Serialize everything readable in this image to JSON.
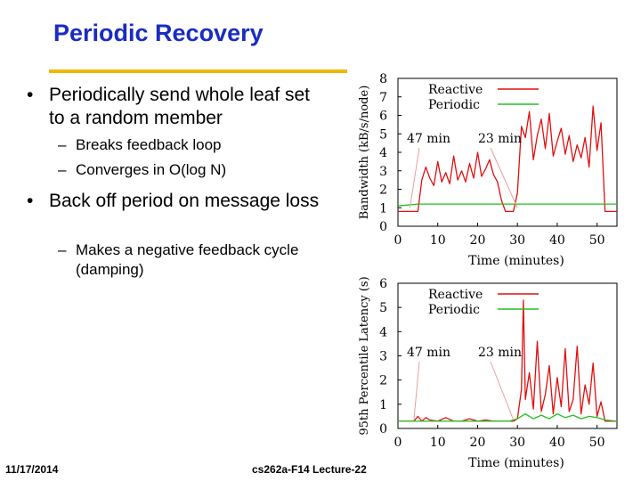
{
  "slide": {
    "title": "Periodic Recovery",
    "bullets": [
      {
        "text": "Periodically send whole leaf set to a random member",
        "subbullets": [
          "Breaks feedback loop",
          "Converges in O(log N)"
        ]
      },
      {
        "text": "Back off period on message loss",
        "subbullets": [
          "Makes a negative feedback cycle (damping)"
        ]
      }
    ],
    "footer": {
      "date": "11/17/2014",
      "course": "cs262a-F14 Lecture-22"
    },
    "bullet_mark": "•",
    "sub_mark": "–"
  },
  "colors": {
    "title": "#1a2cc2",
    "rule": "#f0b800",
    "reactive": "#e01010",
    "periodic": "#20c020"
  },
  "chart_data": [
    {
      "type": "line",
      "ylabel": "Bandwidth (kB/s/node)",
      "xlabel": "Time (minutes)",
      "xlim": [
        0,
        55
      ],
      "ylim": [
        0,
        8
      ],
      "xticks": [
        "0",
        "10",
        "20",
        "30",
        "40",
        "50"
      ],
      "yticks": [
        "0",
        "1",
        "2",
        "3",
        "4",
        "5",
        "6",
        "7",
        "8"
      ],
      "legend": [
        "Reactive",
        "Periodic"
      ],
      "annotations": [
        "47 min",
        "23 min"
      ],
      "series": [
        {
          "name": "Reactive",
          "x": [
            0,
            5,
            6,
            7,
            8,
            9,
            10,
            11,
            12,
            13,
            14,
            15,
            16,
            17,
            18,
            19,
            20,
            21,
            22,
            23,
            24,
            25,
            26,
            27,
            28,
            29,
            30,
            31,
            32,
            33,
            34,
            35,
            36,
            37,
            38,
            39,
            40,
            41,
            42,
            43,
            44,
            45,
            46,
            47,
            48,
            49,
            50,
            51,
            52,
            55
          ],
          "y": [
            0.8,
            0.8,
            2.5,
            3.2,
            2.6,
            2.2,
            3.5,
            2.4,
            2.9,
            2.3,
            3.8,
            2.5,
            3.0,
            2.4,
            3.4,
            2.6,
            4.0,
            2.7,
            3.1,
            3.6,
            2.8,
            2.4,
            1.4,
            0.8,
            0.8,
            0.8,
            1.8,
            5.4,
            4.8,
            6.2,
            3.6,
            4.9,
            5.8,
            4.2,
            6.1,
            3.8,
            4.6,
            5.3,
            3.9,
            4.9,
            3.5,
            4.4,
            3.7,
            4.8,
            3.2,
            6.5,
            4.1,
            5.6,
            0.8,
            0.8
          ]
        },
        {
          "name": "Periodic",
          "x": [
            0,
            5,
            10,
            20,
            30,
            40,
            50,
            55
          ],
          "y": [
            1.1,
            1.2,
            1.2,
            1.2,
            1.2,
            1.2,
            1.2,
            1.2
          ]
        }
      ]
    },
    {
      "type": "line",
      "ylabel": "95th Percentile Latency (s)",
      "xlabel": "Time (minutes)",
      "xlim": [
        0,
        55
      ],
      "ylim": [
        0,
        6
      ],
      "xticks": [
        "0",
        "10",
        "20",
        "30",
        "40",
        "50"
      ],
      "yticks": [
        "0",
        "1",
        "2",
        "3",
        "4",
        "5",
        "6"
      ],
      "legend": [
        "Reactive",
        "Periodic"
      ],
      "annotations": [
        "47 min",
        "23 min"
      ],
      "series": [
        {
          "name": "Reactive",
          "x": [
            0,
            4,
            5,
            6,
            7,
            8,
            10,
            12,
            14,
            16,
            18,
            20,
            22,
            24,
            26,
            28,
            29,
            30,
            31,
            31.5,
            32,
            33,
            34,
            35,
            36,
            37,
            38,
            39,
            40,
            41,
            42,
            43,
            44,
            45,
            46,
            47,
            48,
            49,
            50,
            51,
            52,
            55
          ],
          "y": [
            0.3,
            0.3,
            0.5,
            0.3,
            0.45,
            0.35,
            0.3,
            0.45,
            0.3,
            0.3,
            0.4,
            0.3,
            0.35,
            0.3,
            0.3,
            0.3,
            0.3,
            0.4,
            1.6,
            5.3,
            1.2,
            2.3,
            0.8,
            3.6,
            0.7,
            1.4,
            2.6,
            0.6,
            2.1,
            0.9,
            3.3,
            0.7,
            1.2,
            3.4,
            0.6,
            1.8,
            1.0,
            2.7,
            0.5,
            1.1,
            0.3,
            0.3
          ]
        },
        {
          "name": "Periodic",
          "x": [
            0,
            10,
            20,
            28,
            30,
            32,
            34,
            36,
            38,
            40,
            42,
            44,
            46,
            48,
            50,
            52,
            55
          ],
          "y": [
            0.3,
            0.3,
            0.3,
            0.3,
            0.4,
            0.6,
            0.4,
            0.55,
            0.4,
            0.6,
            0.45,
            0.55,
            0.4,
            0.5,
            0.45,
            0.35,
            0.3
          ]
        }
      ]
    }
  ]
}
